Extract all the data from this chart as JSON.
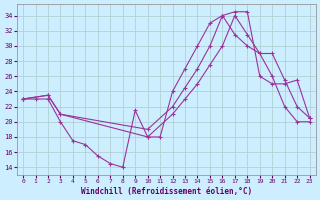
{
  "xlabel": "Windchill (Refroidissement éolien,°C)",
  "background_color": "#cceeff",
  "grid_color": "#aacccc",
  "line_color": "#993399",
  "xlim": [
    -0.5,
    23.5
  ],
  "ylim": [
    13,
    35.5
  ],
  "yticks": [
    14,
    16,
    18,
    20,
    22,
    24,
    26,
    28,
    30,
    32,
    34
  ],
  "xticks": [
    0,
    1,
    2,
    3,
    4,
    5,
    6,
    7,
    8,
    9,
    10,
    11,
    12,
    13,
    14,
    15,
    16,
    17,
    18,
    19,
    20,
    21,
    22,
    23
  ],
  "curve1_x": [
    0,
    1,
    2,
    3,
    4,
    5,
    6,
    7,
    8,
    9,
    10,
    11,
    12,
    13,
    14,
    15,
    16,
    17,
    18,
    19,
    20,
    21,
    22,
    23
  ],
  "curve1_y": [
    23,
    23,
    23,
    20,
    17.5,
    17,
    15.5,
    14.5,
    14,
    21.5,
    18,
    18,
    24,
    27,
    30,
    33,
    34,
    34.5,
    34.5,
    26,
    25,
    25,
    25.5,
    20.5
  ],
  "curve2_x": [
    0,
    2,
    3,
    10,
    12,
    13,
    14,
    15,
    16,
    17,
    18,
    19,
    20,
    21,
    22,
    23
  ],
  "curve2_y": [
    23,
    23.5,
    21,
    19,
    22,
    24.5,
    27,
    30,
    34,
    31.5,
    30,
    29,
    29,
    25.5,
    22,
    20.5
  ],
  "curve3_x": [
    0,
    2,
    3,
    10,
    12,
    13,
    14,
    15,
    16,
    17,
    18,
    19,
    20,
    21,
    22,
    23
  ],
  "curve3_y": [
    23,
    23.5,
    21,
    18,
    21,
    23,
    25,
    27.5,
    30,
    34,
    31.5,
    29,
    26,
    22,
    20,
    20
  ]
}
